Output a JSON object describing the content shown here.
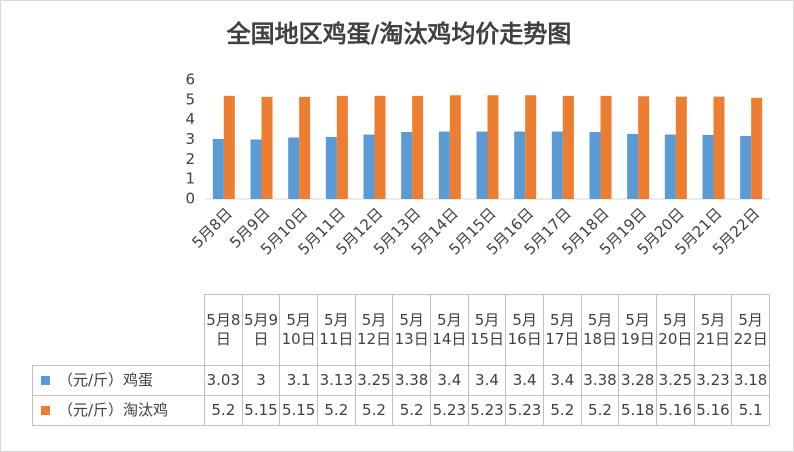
{
  "chart_data": {
    "type": "bar",
    "title": "全国地区鸡蛋/淘汰鸡均价走势图",
    "categories": [
      "5月8日",
      "5月9日",
      "5月10日",
      "5月11日",
      "5月12日",
      "5月13日",
      "5月14日",
      "5月15日",
      "5月16日",
      "5月17日",
      "5月18日",
      "5月19日",
      "5月20日",
      "5月21日",
      "5月22日"
    ],
    "series": [
      {
        "name": "（元/斤）鸡蛋",
        "color": "#5b9bd5",
        "values": [
          3.03,
          3,
          3.1,
          3.13,
          3.25,
          3.38,
          3.4,
          3.4,
          3.4,
          3.4,
          3.38,
          3.28,
          3.25,
          3.23,
          3.18
        ]
      },
      {
        "name": "（元/斤）淘汰鸡",
        "color": "#ed7d31",
        "values": [
          5.2,
          5.15,
          5.15,
          5.2,
          5.2,
          5.2,
          5.23,
          5.23,
          5.23,
          5.2,
          5.2,
          5.18,
          5.16,
          5.16,
          5.1
        ]
      }
    ],
    "ylim": [
      0,
      6
    ],
    "yticks": [
      0,
      1,
      2,
      3,
      4,
      5,
      6
    ],
    "grid": false
  }
}
